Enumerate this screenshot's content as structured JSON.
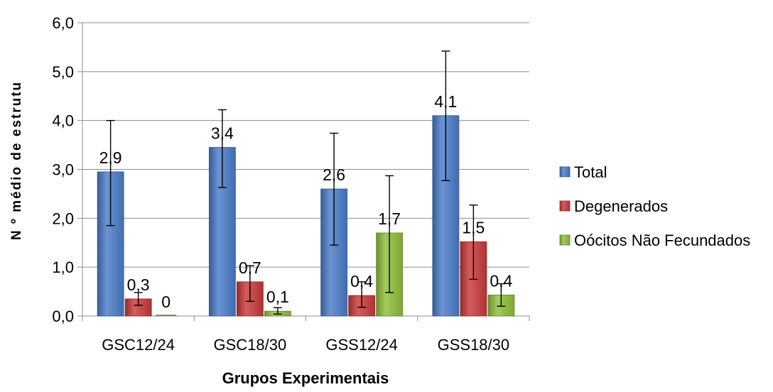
{
  "chart_data": {
    "type": "bar",
    "title": "",
    "xlabel": "Grupos Experimentais",
    "ylabel": "N º médio de estrutu",
    "ylim": [
      0,
      6
    ],
    "yticks": [
      "0,0",
      "1,0",
      "2,0",
      "3,0",
      "4,0",
      "5,0",
      "6,0"
    ],
    "categories": [
      "GSC12/24",
      "GSC18/30",
      "GSS12/24",
      "GSS18/30"
    ],
    "grid": true,
    "legend_position": "right",
    "series": [
      {
        "name": "Total",
        "color": "#4a7cc9",
        "values": [
          2.95,
          3.45,
          2.6,
          4.1
        ],
        "labels": [
          "2,9",
          "3,4",
          "2,6",
          "4,1"
        ],
        "error_low": [
          1.85,
          2.63,
          1.45,
          2.77
        ],
        "error_high": [
          4.0,
          4.22,
          3.74,
          5.42
        ]
      },
      {
        "name": "Degenerados",
        "color": "#c9393a",
        "values": [
          0.35,
          0.7,
          0.42,
          1.52
        ],
        "labels": [
          "0,3",
          "0,7",
          "0,4",
          "1,5"
        ],
        "error_low": [
          0.22,
          0.3,
          0.18,
          0.75
        ],
        "error_high": [
          0.48,
          1.03,
          0.7,
          2.27
        ]
      },
      {
        "name": "Oócitos Não Fecundados",
        "color": "#8fbe3a",
        "values": [
          0.0,
          0.1,
          1.7,
          0.43
        ],
        "labels": [
          "0",
          "0,1",
          "1,7",
          "0,4"
        ],
        "error_low": [
          0.0,
          0.04,
          0.48,
          0.2
        ],
        "error_high": [
          0.0,
          0.17,
          2.87,
          0.66
        ]
      }
    ]
  }
}
